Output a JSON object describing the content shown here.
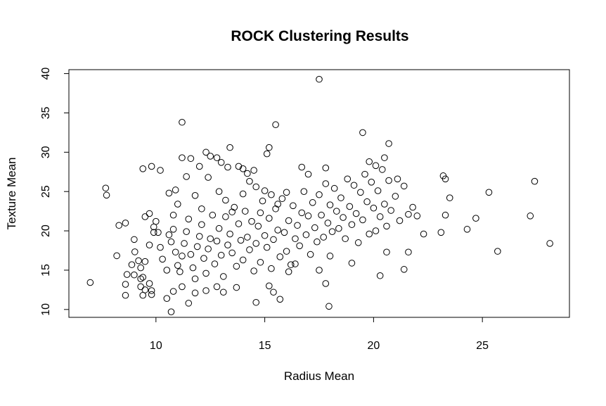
{
  "chart_data": {
    "type": "scatter",
    "title": "ROCK Clustering Results",
    "xlabel": "Radius Mean",
    "ylabel": "Texture Mean",
    "xlim": [
      6.0,
      29.0
    ],
    "ylim": [
      9.0,
      40.5
    ],
    "xticks": [
      "10",
      "15",
      "20",
      "25"
    ],
    "yticks": [
      "10",
      "15",
      "20",
      "25",
      "30",
      "35",
      "40"
    ],
    "marker": "open-circle",
    "marker_color": "#000000",
    "grid": false,
    "points": [
      [
        6.98,
        13.43
      ],
      [
        7.69,
        25.44
      ],
      [
        7.73,
        24.54
      ],
      [
        8.2,
        16.84
      ],
      [
        8.6,
        13.2
      ],
      [
        8.6,
        11.8
      ],
      [
        8.67,
        14.45
      ],
      [
        8.89,
        15.7
      ],
      [
        9.03,
        17.33
      ],
      [
        9.0,
        14.4
      ],
      [
        9.3,
        12.9
      ],
      [
        9.4,
        14.1
      ],
      [
        9.5,
        12.5
      ],
      [
        9.7,
        13.3
      ],
      [
        9.8,
        11.9
      ],
      [
        9.5,
        16.1
      ],
      [
        9.7,
        18.2
      ],
      [
        9.9,
        19.8
      ],
      [
        10.0,
        21.2
      ],
      [
        10.2,
        17.9
      ],
      [
        10.3,
        16.4
      ],
      [
        10.5,
        15.0
      ],
      [
        10.6,
        19.5
      ],
      [
        10.7,
        18.6
      ],
      [
        10.8,
        20.2
      ],
      [
        10.9,
        17.3
      ],
      [
        11.0,
        15.6
      ],
      [
        11.1,
        14.8
      ],
      [
        11.2,
        16.8
      ],
      [
        11.3,
        18.4
      ],
      [
        11.4,
        19.9
      ],
      [
        11.5,
        21.5
      ],
      [
        11.6,
        17.0
      ],
      [
        11.7,
        15.3
      ],
      [
        11.8,
        13.9
      ],
      [
        11.9,
        18.0
      ],
      [
        12.0,
        19.3
      ],
      [
        12.1,
        20.8
      ],
      [
        12.2,
        16.5
      ],
      [
        12.3,
        14.6
      ],
      [
        12.4,
        17.7
      ],
      [
        12.5,
        19.0
      ],
      [
        12.6,
        22.0
      ],
      [
        12.7,
        15.8
      ],
      [
        12.8,
        18.7
      ],
      [
        12.9,
        20.3
      ],
      [
        13.0,
        16.9
      ],
      [
        13.1,
        14.2
      ],
      [
        13.2,
        21.8
      ],
      [
        13.3,
        18.2
      ],
      [
        13.4,
        19.6
      ],
      [
        13.5,
        17.2
      ],
      [
        13.6,
        23.0
      ],
      [
        13.7,
        15.5
      ],
      [
        13.8,
        20.9
      ],
      [
        13.9,
        18.8
      ],
      [
        14.0,
        16.3
      ],
      [
        14.1,
        22.5
      ],
      [
        14.2,
        19.2
      ],
      [
        14.3,
        17.6
      ],
      [
        14.4,
        21.2
      ],
      [
        14.5,
        14.9
      ],
      [
        14.6,
        18.4
      ],
      [
        14.7,
        20.6
      ],
      [
        14.8,
        16.0
      ],
      [
        14.9,
        23.8
      ],
      [
        15.0,
        19.4
      ],
      [
        15.1,
        17.9
      ],
      [
        15.2,
        21.6
      ],
      [
        15.3,
        15.2
      ],
      [
        15.4,
        18.9
      ],
      [
        15.5,
        22.8
      ],
      [
        15.6,
        20.1
      ],
      [
        15.7,
        16.7
      ],
      [
        15.8,
        24.1
      ],
      [
        15.9,
        19.8
      ],
      [
        16.0,
        17.4
      ],
      [
        16.1,
        21.3
      ],
      [
        16.2,
        15.7
      ],
      [
        16.3,
        23.2
      ],
      [
        16.4,
        19.0
      ],
      [
        16.5,
        20.7
      ],
      [
        16.6,
        18.1
      ],
      [
        16.7,
        22.3
      ],
      [
        16.8,
        25.0
      ],
      [
        16.9,
        19.5
      ],
      [
        17.0,
        21.9
      ],
      [
        17.1,
        17.0
      ],
      [
        17.2,
        23.6
      ],
      [
        17.3,
        20.4
      ],
      [
        17.4,
        18.6
      ],
      [
        17.5,
        24.6
      ],
      [
        17.6,
        22.0
      ],
      [
        17.7,
        19.2
      ],
      [
        17.8,
        26.0
      ],
      [
        17.9,
        21.0
      ],
      [
        18.0,
        23.3
      ],
      [
        18.1,
        19.9
      ],
      [
        18.2,
        25.4
      ],
      [
        18.3,
        22.5
      ],
      [
        18.4,
        20.3
      ],
      [
        18.5,
        24.2
      ],
      [
        18.6,
        21.7
      ],
      [
        18.7,
        19.0
      ],
      [
        18.8,
        26.6
      ],
      [
        18.9,
        23.1
      ],
      [
        19.0,
        20.8
      ],
      [
        19.1,
        25.8
      ],
      [
        19.2,
        22.2
      ],
      [
        19.3,
        18.5
      ],
      [
        19.4,
        24.9
      ],
      [
        19.5,
        21.4
      ],
      [
        19.6,
        27.2
      ],
      [
        19.7,
        23.7
      ],
      [
        19.8,
        19.6
      ],
      [
        19.9,
        26.2
      ],
      [
        20.0,
        22.9
      ],
      [
        20.1,
        20.0
      ],
      [
        20.2,
        25.1
      ],
      [
        20.3,
        21.8
      ],
      [
        20.4,
        27.8
      ],
      [
        20.5,
        23.4
      ],
      [
        20.6,
        20.6
      ],
      [
        20.7,
        26.4
      ],
      [
        20.8,
        22.6
      ],
      [
        21.0,
        24.4
      ],
      [
        21.2,
        21.3
      ],
      [
        21.4,
        25.7
      ],
      [
        21.6,
        22.1
      ],
      [
        21.8,
        23.0
      ],
      [
        11.2,
        33.81
      ],
      [
        10.9,
        25.2
      ],
      [
        11.2,
        29.3
      ],
      [
        11.6,
        29.2
      ],
      [
        12.0,
        28.2
      ],
      [
        12.3,
        30.0
      ],
      [
        12.5,
        29.5
      ],
      [
        12.8,
        29.3
      ],
      [
        13.0,
        28.7
      ],
      [
        13.4,
        30.6
      ],
      [
        13.3,
        28.1
      ],
      [
        13.8,
        28.2
      ],
      [
        14.2,
        27.3
      ],
      [
        14.0,
        27.9
      ],
      [
        14.5,
        27.7
      ],
      [
        15.1,
        29.8
      ],
      [
        15.2,
        30.6
      ],
      [
        15.5,
        33.5
      ],
      [
        16.7,
        28.1
      ],
      [
        17.0,
        27.2
      ],
      [
        17.5,
        39.28
      ],
      [
        17.8,
        28.0
      ],
      [
        19.5,
        32.5
      ],
      [
        20.7,
        31.1
      ],
      [
        20.5,
        29.3
      ],
      [
        20.1,
        28.3
      ],
      [
        19.8,
        28.8
      ],
      [
        21.1,
        26.6
      ],
      [
        22.0,
        21.9
      ],
      [
        22.3,
        19.6
      ],
      [
        23.1,
        19.8
      ],
      [
        23.2,
        27.0
      ],
      [
        23.3,
        26.6
      ],
      [
        23.5,
        24.2
      ],
      [
        23.3,
        22.0
      ],
      [
        24.3,
        20.2
      ],
      [
        24.7,
        21.6
      ],
      [
        25.3,
        24.9
      ],
      [
        25.7,
        17.4
      ],
      [
        27.2,
        21.9
      ],
      [
        27.4,
        26.3
      ],
      [
        28.1,
        18.4
      ],
      [
        17.95,
        10.4
      ],
      [
        17.8,
        13.3
      ],
      [
        20.3,
        14.3
      ],
      [
        21.4,
        15.1
      ],
      [
        19.0,
        15.9
      ],
      [
        21.6,
        17.3
      ],
      [
        20.6,
        17.3
      ],
      [
        18.0,
        16.8
      ],
      [
        17.5,
        15.0
      ],
      [
        16.4,
        15.8
      ],
      [
        16.1,
        14.8
      ],
      [
        15.7,
        11.3
      ],
      [
        15.4,
        12.2
      ],
      [
        15.2,
        13.0
      ],
      [
        14.6,
        10.9
      ],
      [
        13.7,
        12.8
      ],
      [
        13.1,
        12.2
      ],
      [
        12.8,
        12.9
      ],
      [
        12.3,
        12.4
      ],
      [
        11.8,
        12.1
      ],
      [
        11.5,
        10.8
      ],
      [
        11.2,
        12.9
      ],
      [
        10.8,
        12.3
      ],
      [
        10.7,
        9.7
      ],
      [
        10.5,
        11.4
      ],
      [
        9.8,
        12.4
      ],
      [
        9.4,
        11.8
      ],
      [
        9.3,
        13.9
      ],
      [
        8.3,
        20.7
      ],
      [
        8.6,
        21.0
      ],
      [
        9.0,
        18.9
      ],
      [
        9.2,
        16.2
      ],
      [
        9.3,
        15.3
      ],
      [
        9.5,
        21.8
      ],
      [
        9.7,
        22.2
      ],
      [
        9.9,
        20.5
      ],
      [
        10.1,
        19.8
      ],
      [
        10.2,
        27.7
      ],
      [
        9.8,
        28.2
      ],
      [
        9.4,
        27.9
      ],
      [
        10.6,
        24.8
      ],
      [
        10.8,
        22.0
      ],
      [
        11.0,
        23.4
      ],
      [
        11.4,
        26.9
      ],
      [
        11.8,
        24.5
      ],
      [
        12.1,
        22.8
      ],
      [
        12.4,
        26.8
      ],
      [
        12.9,
        25.0
      ],
      [
        13.2,
        23.9
      ],
      [
        13.5,
        22.4
      ],
      [
        14.0,
        24.7
      ],
      [
        14.3,
        26.3
      ],
      [
        14.6,
        25.6
      ],
      [
        14.8,
        22.3
      ],
      [
        15.0,
        25.1
      ],
      [
        15.3,
        24.6
      ],
      [
        15.6,
        23.4
      ],
      [
        16.0,
        24.9
      ]
    ]
  }
}
